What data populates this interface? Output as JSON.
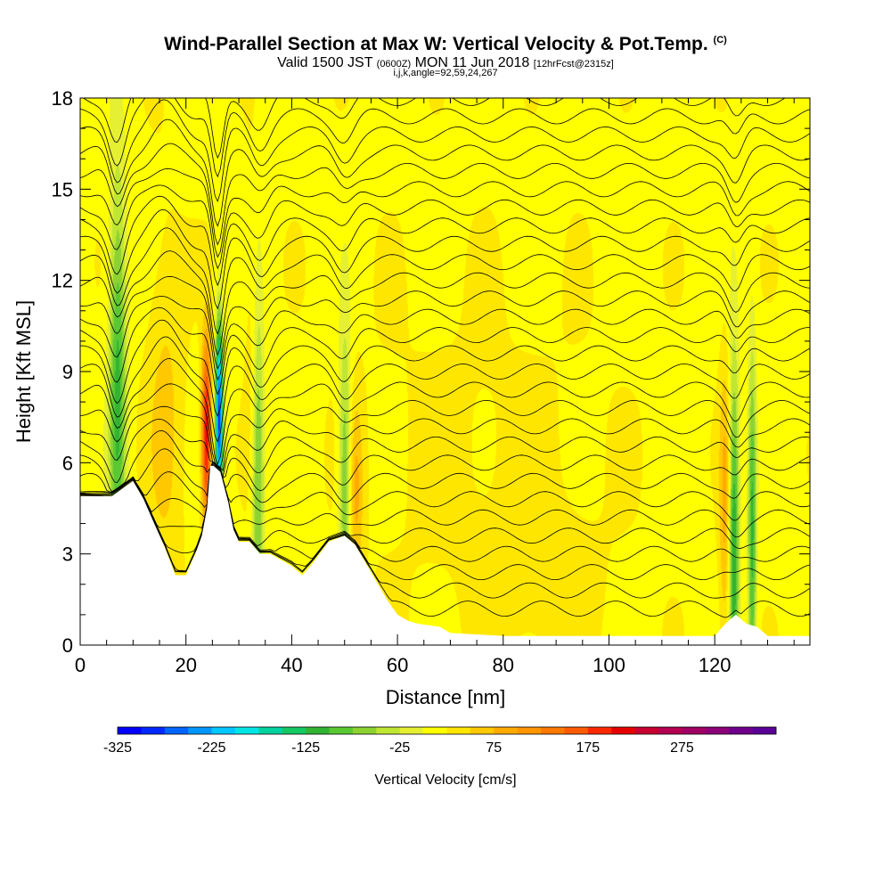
{
  "header": {
    "title": "Wind-Parallel Section at Max W: Vertical Velocity & Pot.Temp.",
    "copyright": "(C)",
    "valid_prefix": "Valid 1500 JST",
    "utc": "(0600Z)",
    "valid_date": "MON 11 Jun 2018",
    "forecast": "[12hrFcst@2315z]",
    "params": "i,j,k,angle=92,59,24,267"
  },
  "chart_data": {
    "type": "heatmap",
    "xlabel": "Distance [nm]",
    "ylabel": "Height [Kft MSL]",
    "xlim": [
      0,
      138
    ],
    "ylim": [
      0,
      18
    ],
    "x_ticks": [
      "0",
      "20",
      "40",
      "60",
      "80",
      "100",
      "120"
    ],
    "y_ticks": [
      "0",
      "3",
      "6",
      "9",
      "12",
      "15",
      "18"
    ],
    "grid": false,
    "colorbar": {
      "title": "Vertical Velocity [cm/s]",
      "labels": [
        "-325",
        "-225",
        "-125",
        "-25",
        "75",
        "175",
        "275"
      ],
      "colors": [
        "#0000ff",
        "#0028ff",
        "#0064ff",
        "#0096ff",
        "#00c8ff",
        "#00e6e6",
        "#00d2a0",
        "#14c864",
        "#32b432",
        "#5ac832",
        "#8cd232",
        "#bee632",
        "#e6f032",
        "#ffff00",
        "#ffe600",
        "#ffc800",
        "#ffaa00",
        "#ff9600",
        "#ff7800",
        "#ff5a00",
        "#ff2800",
        "#e60000",
        "#c80032",
        "#b40050",
        "#a00064",
        "#8c0078",
        "#6e008c",
        "#5a0096"
      ]
    },
    "terrain_profile": [
      [
        0,
        4.9
      ],
      [
        6,
        4.9
      ],
      [
        10,
        5.4
      ],
      [
        12,
        4.8
      ],
      [
        14,
        4.0
      ],
      [
        16,
        3.2
      ],
      [
        18,
        2.3
      ],
      [
        20,
        2.3
      ],
      [
        22,
        3.1
      ],
      [
        23,
        3.6
      ],
      [
        24,
        4.5
      ],
      [
        24.6,
        5.9
      ],
      [
        25.2,
        5.9
      ],
      [
        26.5,
        5.7
      ],
      [
        28,
        4.7
      ],
      [
        29,
        3.8
      ],
      [
        30,
        3.4
      ],
      [
        32,
        3.4
      ],
      [
        34,
        3.0
      ],
      [
        36,
        3.0
      ],
      [
        38,
        2.8
      ],
      [
        40,
        2.6
      ],
      [
        42,
        2.3
      ],
      [
        44,
        2.7
      ],
      [
        47,
        3.4
      ],
      [
        50,
        3.6
      ],
      [
        52,
        3.3
      ],
      [
        54,
        2.7
      ],
      [
        56,
        2.1
      ],
      [
        58,
        1.5
      ],
      [
        60,
        1.0
      ],
      [
        62,
        0.8
      ],
      [
        64,
        0.7
      ],
      [
        68,
        0.6
      ],
      [
        70,
        0.4
      ],
      [
        80,
        0.3
      ],
      [
        90,
        0.3
      ],
      [
        100,
        0.3
      ],
      [
        110,
        0.3
      ],
      [
        120,
        0.3
      ],
      [
        122,
        0.7
      ],
      [
        124,
        1.0
      ],
      [
        126,
        0.7
      ],
      [
        128,
        0.6
      ],
      [
        130,
        0.3
      ],
      [
        138,
        0.3
      ]
    ],
    "velocity_features": [
      {
        "x": 7,
        "y": 8.5,
        "wx": 1.6,
        "wy": 7.0,
        "w": -125
      },
      {
        "x": 16,
        "y": 7.5,
        "wx": 3.5,
        "wy": 6.0,
        "w": 40
      },
      {
        "x": 23.8,
        "y": 7.0,
        "wx": 0.9,
        "wy": 3.0,
        "w": 200
      },
      {
        "x": 26.2,
        "y": 7.5,
        "wx": 0.7,
        "wy": 3.0,
        "w": -300
      },
      {
        "x": 33.5,
        "y": 6.5,
        "wx": 1.2,
        "wy": 6.0,
        "w": -125
      },
      {
        "x": 33,
        "y": 9.5,
        "wx": 1.5,
        "wy": 5.0,
        "w": 50
      },
      {
        "x": 50,
        "y": 5.5,
        "wx": 1.2,
        "wy": 5.0,
        "w": -100
      },
      {
        "x": 52,
        "y": 5.0,
        "wx": 1.4,
        "wy": 3.0,
        "w": 60
      },
      {
        "x": 123.5,
        "y": 3.5,
        "wx": 1.0,
        "wy": 6.0,
        "w": -150
      },
      {
        "x": 127,
        "y": 3.5,
        "wx": 0.8,
        "wy": 6.0,
        "w": -125
      },
      {
        "x": 122,
        "y": 4.5,
        "wx": 1.2,
        "wy": 5.0,
        "w": 70
      },
      {
        "x": 75,
        "y": 6.0,
        "wx": 25.0,
        "wy": 6.0,
        "w": 15
      },
      {
        "x": 88,
        "y": 2.0,
        "wx": 10.0,
        "wy": 2.5,
        "w": 20
      }
    ],
    "theta_contours": {
      "base_height_kft": 1.2,
      "spacing_kft": 0.6,
      "count": 29
    }
  }
}
